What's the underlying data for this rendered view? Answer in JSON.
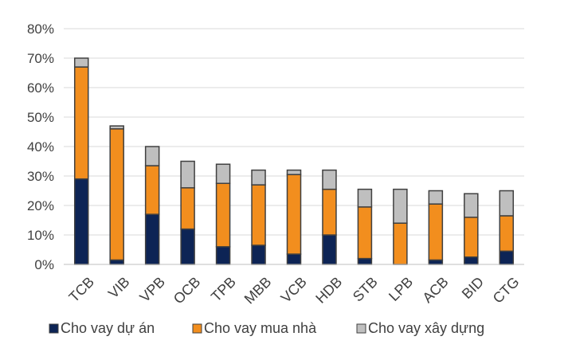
{
  "chart_data": {
    "type": "bar",
    "stacked": true,
    "title": "",
    "xlabel": "",
    "ylabel": "",
    "ylim": [
      0,
      80
    ],
    "yticks": [
      "0%",
      "10%",
      "20%",
      "30%",
      "40%",
      "50%",
      "60%",
      "70%",
      "80%"
    ],
    "grid": true,
    "legend_position": "bottom",
    "categories": [
      "TCB",
      "VIB",
      "VPB",
      "OCB",
      "TPB",
      "MBB",
      "VCB",
      "HDB",
      "STB",
      "LPB",
      "ACB",
      "BID",
      "CTG"
    ],
    "series": [
      {
        "name": "Cho vay dự án",
        "color": "#0d2455",
        "values": [
          29,
          1.5,
          17,
          12,
          6,
          6.5,
          3.5,
          10,
          2,
          0,
          1.5,
          2.5,
          4.5
        ]
      },
      {
        "name": "Cho vay mua nhà",
        "color": "#f28e1e",
        "values": [
          38,
          44.5,
          16.5,
          14,
          21.5,
          20.5,
          27,
          15.5,
          17.5,
          14,
          19,
          13.5,
          12
        ]
      },
      {
        "name": "Cho vay xây dựng",
        "color": "#bfbfbf",
        "values": [
          3,
          1,
          6.5,
          9,
          6.5,
          5,
          1.5,
          6.5,
          6,
          11.5,
          4.5,
          8,
          8.5
        ]
      }
    ]
  }
}
